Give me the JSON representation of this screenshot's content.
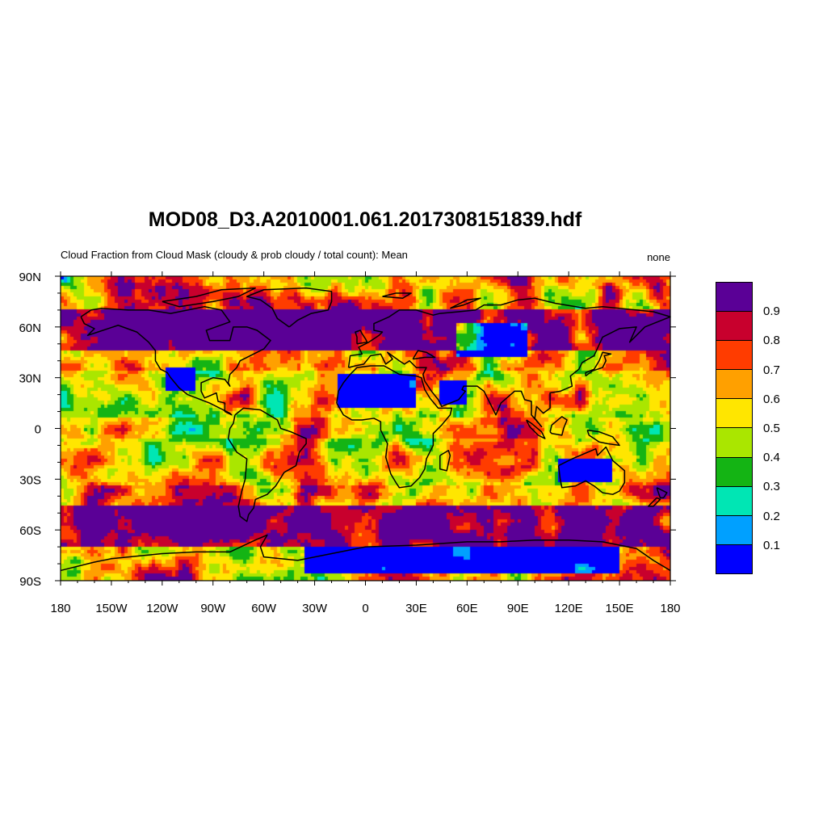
{
  "title": "MOD08_D3.A2010001.061.2017308151839.hdf",
  "subtitle": "Cloud Fraction from Cloud Mask (cloudy & prob cloudy / total count): Mean",
  "units": "none",
  "map": {
    "projection": "cylindrical-equidistant",
    "lon_range": [
      -180,
      180
    ],
    "lat_range": [
      -90,
      90
    ],
    "coastlines": true,
    "x_tick_labels": [
      "180",
      "150W",
      "120W",
      "90W",
      "60W",
      "30W",
      "0",
      "30E",
      "60E",
      "90E",
      "120E",
      "150E",
      "180"
    ],
    "x_tick_values": [
      -180,
      -150,
      -120,
      -90,
      -60,
      -30,
      0,
      30,
      60,
      90,
      120,
      150,
      180
    ],
    "y_tick_labels": [
      "90N",
      "60N",
      "30N",
      "0",
      "30S",
      "60S",
      "90S"
    ],
    "y_tick_values": [
      90,
      60,
      30,
      0,
      -30,
      -60,
      -90
    ]
  },
  "colorbar": {
    "orientation": "vertical",
    "placement": "right",
    "levels": [
      "0.1",
      "0.2",
      "0.3",
      "0.4",
      "0.5",
      "0.6",
      "0.7",
      "0.8",
      "0.9"
    ],
    "colors_bottom_to_top": [
      "#0000ff",
      "#00a0ff",
      "#00e6b4",
      "#14b414",
      "#aae600",
      "#ffe600",
      "#ffa000",
      "#ff3c00",
      "#c8002d",
      "#5a0096"
    ]
  }
}
